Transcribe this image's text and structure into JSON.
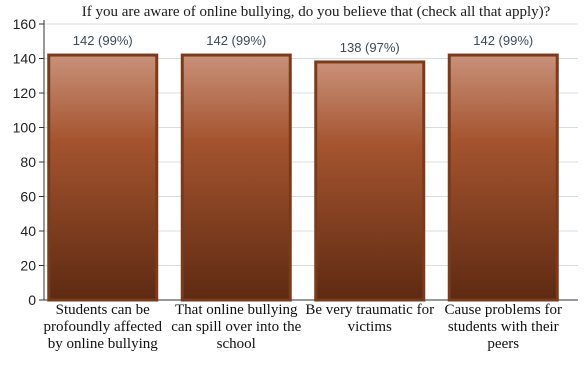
{
  "chart_data": {
    "type": "bar",
    "title": "If you are aware of online bullying, do you believe that (check all that apply)?",
    "categories": [
      "Students can be profoundly affected by online bullying",
      "That online bullying can spill over into the school",
      "Be very traumatic for victims",
      "Cause problems for students with their peers"
    ],
    "values": [
      142,
      142,
      138,
      142
    ],
    "data_labels": [
      "142 (99%)",
      "142 (99%)",
      "138 (97%)",
      "142 (99%)"
    ],
    "ylim": [
      0,
      160
    ],
    "yticks": [
      0,
      20,
      40,
      60,
      80,
      100,
      120,
      140,
      160
    ],
    "xlabel": "",
    "ylabel": "",
    "grid": "horizontal",
    "legend": "none",
    "colors": {
      "bar_top": "#c9917a",
      "bar_bottom": "#5e2a12",
      "bar_edge": "#7a3a1c",
      "grid": "#dcdcdc"
    }
  }
}
